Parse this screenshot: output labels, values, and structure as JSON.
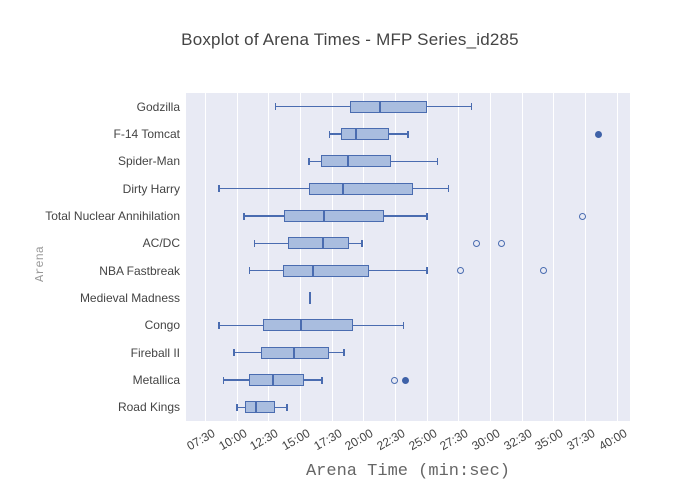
{
  "title": "Boxplot of Arena Times - MFP Series_id285",
  "colors": {
    "plot_background": "#e8eaf4",
    "gridline": "#ffffff",
    "box_line": "#4a6cb0",
    "box_fill": "#a9bddf",
    "outlier_filled": "#3f62a8",
    "title_text": "#444444",
    "axis_title_text": "#666666",
    "y_axis_title_text": "#999999"
  },
  "chart_data": {
    "type": "boxplot-horizontal",
    "title": "Boxplot of Arena Times - MFP Series_id285",
    "xlabel": "Arena Time (min:sec)",
    "ylabel": "Arena",
    "grid": true,
    "x_tick_labels": [
      "07:30",
      "10:00",
      "12:30",
      "15:00",
      "17:30",
      "20:00",
      "22:30",
      "25:00",
      "27:30",
      "30:00",
      "32:30",
      "35:00",
      "37:30",
      "40:00"
    ],
    "x_range": [
      "06:00",
      "41:00"
    ],
    "categories_top_to_bottom": [
      "Godzilla",
      "F-14 Tomcat",
      "Spider-Man",
      "Dirty Harry",
      "Total Nuclear Annihilation",
      "AC/DC",
      "NBA Fastbreak",
      "Medieval Madness",
      "Congo",
      "Fireball II",
      "Metallica",
      "Road Kings"
    ],
    "series": [
      {
        "name": "Godzilla",
        "whisker_low": "13:00",
        "q1": "18:57",
        "median": "21:19",
        "q3": "25:01",
        "whisker_high": "28:35",
        "outliers": []
      },
      {
        "name": "F-14 Tomcat",
        "whisker_low": "17:17",
        "q1": "18:14",
        "median": "19:25",
        "q3": "22:02",
        "whisker_high": "23:36",
        "outliers": [
          {
            "value": "38:32",
            "marker": "filled"
          }
        ]
      },
      {
        "name": "Spider-Man",
        "whisker_low": "15:38",
        "q1": "16:39",
        "median": "18:47",
        "q3": "22:11",
        "whisker_high": "25:54",
        "outliers": []
      },
      {
        "name": "Dirty Harry",
        "whisker_low": "08:32",
        "q1": "15:43",
        "median": "18:24",
        "q3": "23:55",
        "whisker_high": "26:46",
        "outliers": []
      },
      {
        "name": "Total Nuclear Annihilation",
        "whisker_low": "10:30",
        "q1": "13:44",
        "median": "16:54",
        "q3": "21:38",
        "whisker_high": "25:06",
        "outliers": [
          {
            "value": "37:20",
            "marker": "open"
          }
        ]
      },
      {
        "name": "AC/DC",
        "whisker_low": "11:22",
        "q1": "14:03",
        "median": "16:49",
        "q3": "18:52",
        "whisker_high": "19:58",
        "outliers": [
          {
            "value": "28:58",
            "marker": "open"
          },
          {
            "value": "30:52",
            "marker": "open"
          }
        ]
      },
      {
        "name": "NBA Fastbreak",
        "whisker_low": "10:58",
        "q1": "13:39",
        "median": "16:02",
        "q3": "20:27",
        "whisker_high": "25:06",
        "outliers": [
          {
            "value": "27:38",
            "marker": "open"
          },
          {
            "value": "34:11",
            "marker": "open"
          }
        ]
      },
      {
        "name": "Medieval Madness",
        "whisker_low": "15:43",
        "q1": "15:43",
        "median": "15:43",
        "q3": "15:43",
        "whisker_high": "15:43",
        "outliers": []
      },
      {
        "name": "Congo",
        "whisker_low": "08:32",
        "q1": "12:05",
        "median": "15:05",
        "q3": "19:11",
        "whisker_high": "23:13",
        "outliers": []
      },
      {
        "name": "Fireball II",
        "whisker_low": "09:43",
        "q1": "11:55",
        "median": "14:32",
        "q3": "17:17",
        "whisker_high": "18:33",
        "outliers": []
      },
      {
        "name": "Metallica",
        "whisker_low": "08:54",
        "q1": "11:00",
        "median": "12:51",
        "q3": "15:20",
        "whisker_high": "16:48",
        "outliers": [
          {
            "value": "22:27",
            "marker": "open"
          },
          {
            "value": "23:22",
            "marker": "filled"
          }
        ]
      },
      {
        "name": "Road Kings",
        "whisker_low": "09:57",
        "q1": "10:39",
        "median": "11:32",
        "q3": "13:02",
        "whisker_high": "14:03",
        "outliers": []
      }
    ]
  }
}
